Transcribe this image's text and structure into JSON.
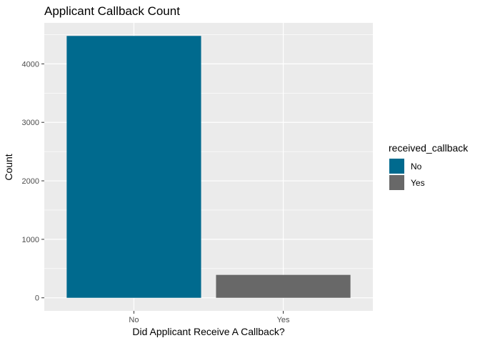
{
  "chart_data": {
    "type": "bar",
    "title": "Applicant Callback Count",
    "xlabel": "Did Applicant Receive A Callback?",
    "ylabel": "Count",
    "categories": [
      "No",
      "Yes"
    ],
    "values": [
      4478,
      392
    ],
    "colors": [
      "#006a8e",
      "#686868"
    ],
    "ylim": [
      -223,
      4701
    ],
    "yticks": [
      0,
      1000,
      2000,
      3000,
      4000
    ],
    "grid": true,
    "legend": {
      "title": "received_callback",
      "placement": "right",
      "entries": [
        "No",
        "Yes"
      ]
    },
    "panel_color": "#ebebeb",
    "grid_color": "#ffffff"
  }
}
